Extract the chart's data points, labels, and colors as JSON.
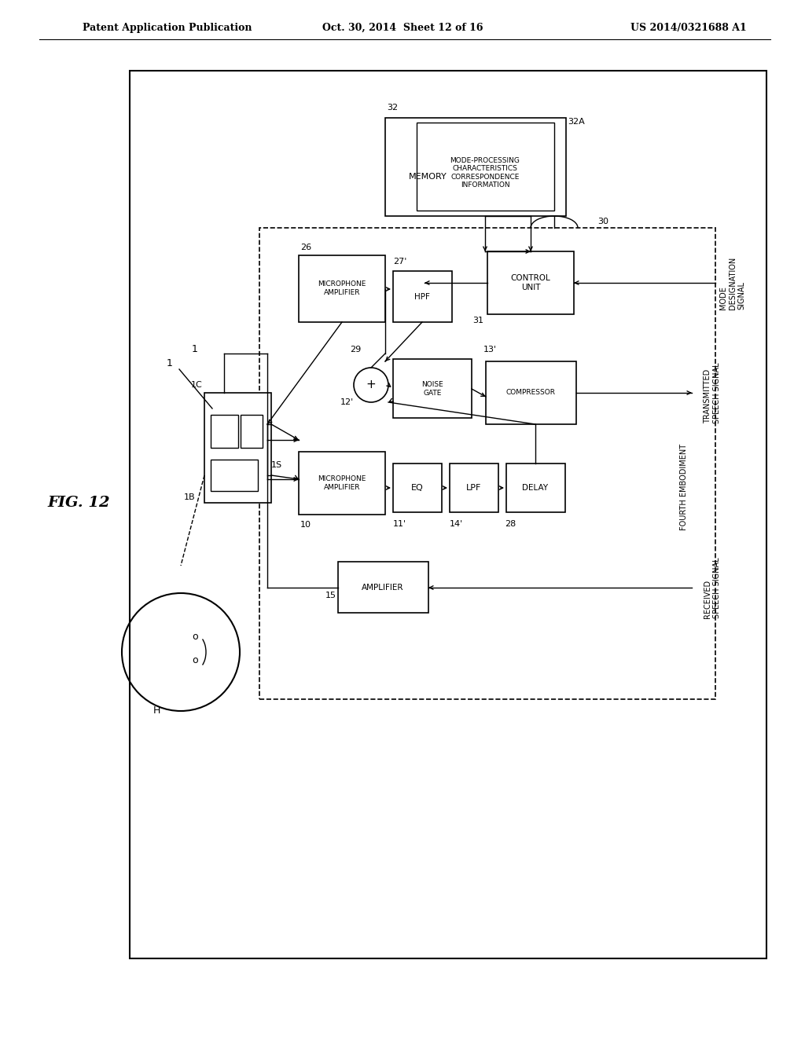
{
  "bg_color": "#ffffff",
  "title_line1": "Patent Application Publication",
  "title_line2": "Oct. 30, 2014  Sheet 12 of 16",
  "title_line3": "US 2014/0321688 A1",
  "fig_label": "FIG. 12"
}
